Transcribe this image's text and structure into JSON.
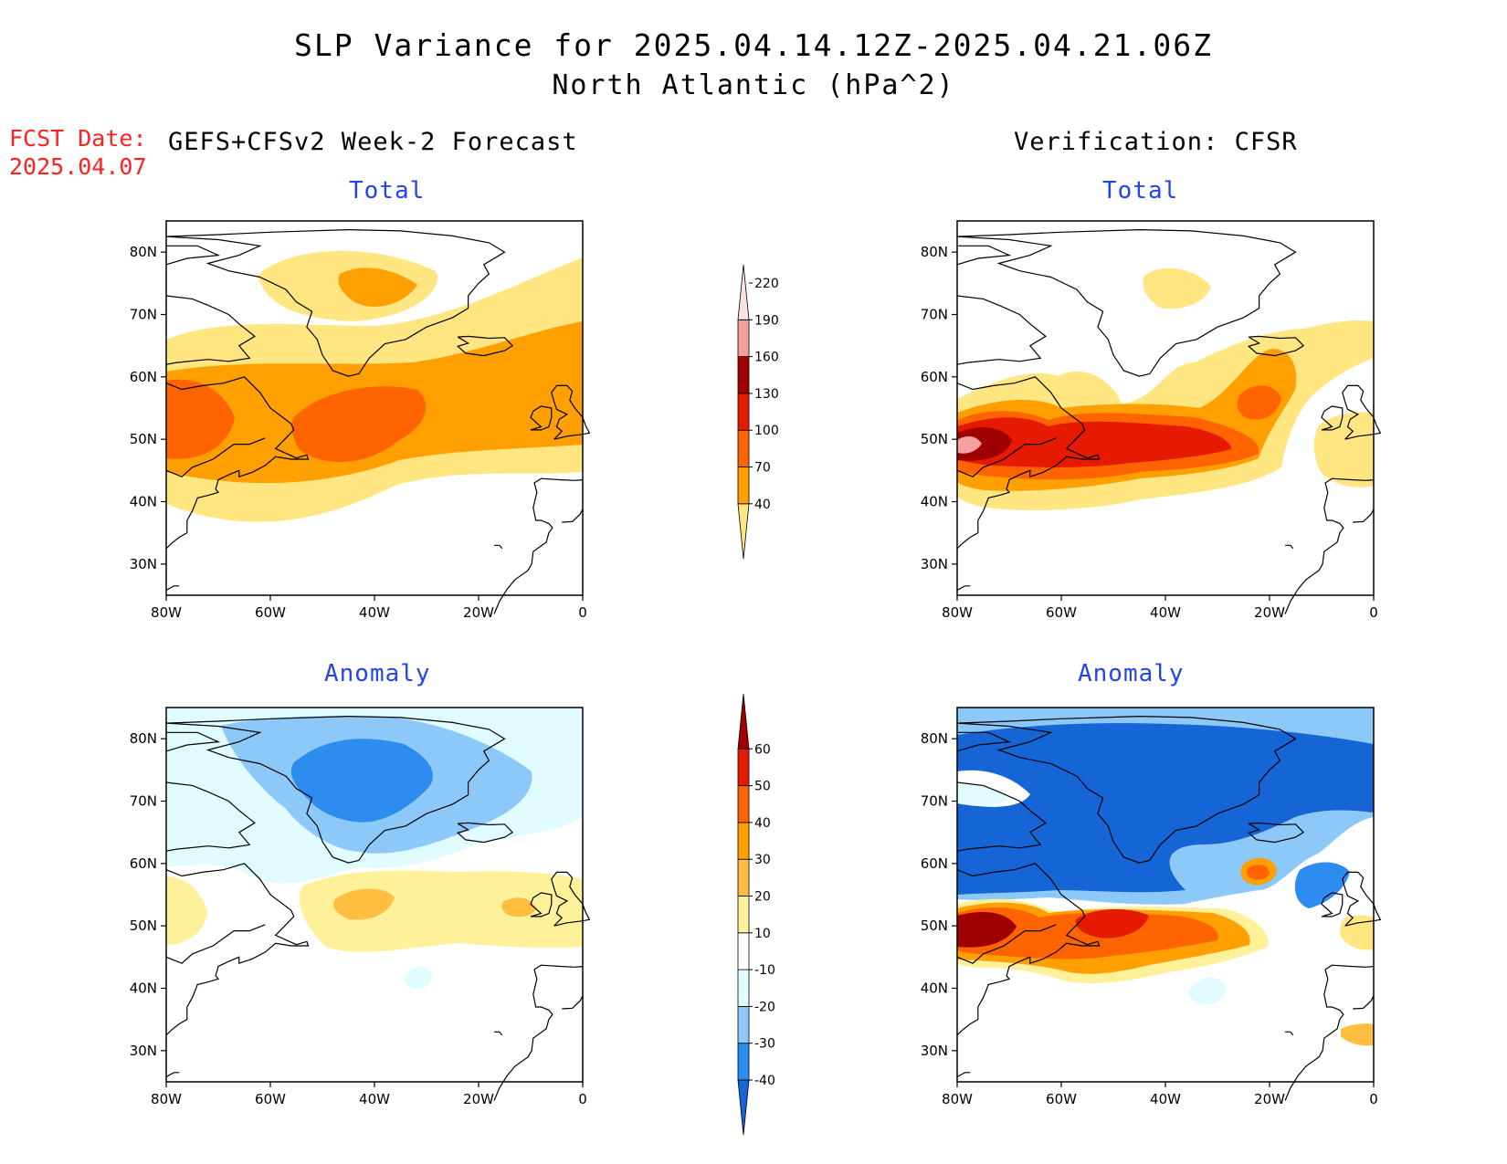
{
  "title": {
    "line1": "SLP Variance for 2025.04.14.12Z-2025.04.21.06Z",
    "line2": "North Atlantic (hPa^2)"
  },
  "forecast_date": {
    "label": "FCST Date:",
    "value": "2025.04.07"
  },
  "headers": {
    "left": "GEFS+CFSv2 Week-2 Forecast",
    "right": "Verification: CFSR"
  },
  "panel_titles": {
    "total": "Total",
    "anomaly": "Anomaly"
  },
  "axes": {
    "x_ticks": [
      "80W",
      "60W",
      "40W",
      "20W",
      "0"
    ],
    "y_ticks": [
      "80N",
      "70N",
      "60N",
      "50N",
      "40N",
      "30N"
    ],
    "lon_range": [
      -80,
      0
    ],
    "lat_range": [
      25,
      85
    ]
  },
  "colorbars": {
    "total": {
      "labels": [
        "40",
        "70",
        "100",
        "130",
        "160",
        "190",
        "220"
      ],
      "colors": [
        "#ffe680",
        "#ffa000",
        "#ff6400",
        "#e61a00",
        "#a00000",
        "#f4a0a0",
        "#fde2e2"
      ]
    },
    "anomaly": {
      "labels": [
        "-40",
        "-30",
        "-20",
        "-10",
        "10",
        "20",
        "30",
        "40",
        "50",
        "60"
      ],
      "colors": [
        "#1565d6",
        "#2c8cf0",
        "#8cc8f8",
        "#e0fcff",
        "#ffffff",
        "#fff09a",
        "#ffbe40",
        "#ffa000",
        "#ff6400",
        "#e61a00",
        "#a00000"
      ]
    }
  }
}
